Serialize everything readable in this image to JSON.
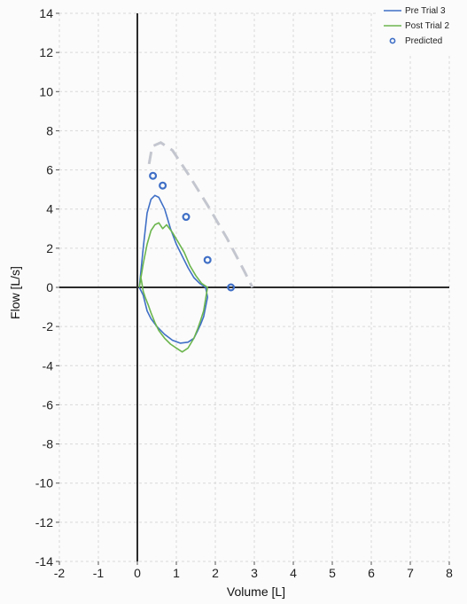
{
  "chart_data": {
    "type": "line",
    "title": "",
    "xlabel": "Volume [L]",
    "ylabel": "Flow [L/s]",
    "xlim": [
      -2,
      8
    ],
    "ylim": [
      -14,
      14
    ],
    "x_ticks": [
      -2,
      -1,
      0,
      1,
      2,
      3,
      4,
      5,
      6,
      7,
      8
    ],
    "y_ticks": [
      14,
      12,
      10,
      8,
      6,
      4,
      2,
      0,
      -2,
      -4,
      -6,
      -8,
      -10,
      -12,
      -14
    ],
    "grid": true,
    "legend": "top-right",
    "series": [
      {
        "name": "Pre Trial 3",
        "kind": "line",
        "color": "#3f6fc6",
        "x": [
          0.05,
          0.15,
          0.25,
          0.35,
          0.45,
          0.55,
          0.7,
          0.85,
          1.0,
          1.15,
          1.3,
          1.45,
          1.6,
          1.75,
          1.8,
          1.75,
          1.7,
          1.62,
          1.55,
          1.45,
          1.3,
          1.1,
          0.9,
          0.7,
          0.5,
          0.35,
          0.25,
          0.2,
          0.15,
          0.1,
          0.05
        ],
        "y": [
          0.0,
          2.0,
          3.8,
          4.5,
          4.7,
          4.6,
          4.0,
          3.0,
          2.2,
          1.6,
          1.0,
          0.5,
          0.2,
          0.0,
          -0.5,
          -1.0,
          -1.5,
          -1.9,
          -2.2,
          -2.6,
          -2.8,
          -2.85,
          -2.7,
          -2.4,
          -2.0,
          -1.6,
          -1.2,
          -0.8,
          -0.4,
          -0.2,
          0.0
        ]
      },
      {
        "name": "Post Trial 2",
        "kind": "line",
        "color": "#6cb64e",
        "x": [
          0.05,
          0.15,
          0.25,
          0.35,
          0.45,
          0.55,
          0.65,
          0.75,
          0.9,
          1.05,
          1.2,
          1.35,
          1.5,
          1.65,
          1.8,
          1.75,
          1.7,
          1.62,
          1.55,
          1.45,
          1.3,
          1.15,
          1.0,
          0.85,
          0.7,
          0.55,
          0.45,
          0.35,
          0.28,
          0.2,
          0.15,
          0.1,
          0.08
        ],
        "y": [
          0.0,
          1.2,
          2.2,
          2.9,
          3.2,
          3.3,
          3.0,
          3.2,
          2.8,
          2.3,
          1.8,
          1.1,
          0.6,
          0.2,
          0.0,
          -0.6,
          -1.2,
          -1.7,
          -2.1,
          -2.6,
          -3.1,
          -3.3,
          -3.1,
          -2.9,
          -2.6,
          -2.2,
          -1.8,
          -1.3,
          -0.9,
          -0.5,
          -0.2,
          0.4,
          0.6
        ]
      },
      {
        "name": "",
        "kind": "dashed",
        "color": "#c4c6cf",
        "x": [
          0.3,
          0.38,
          0.6,
          0.9,
          1.3,
          1.8,
          2.3,
          2.75,
          2.95
        ],
        "y": [
          6.3,
          7.2,
          7.4,
          7.0,
          5.8,
          4.2,
          2.5,
          0.8,
          0.0
        ]
      },
      {
        "name": "Predicted",
        "kind": "points",
        "color": "#3f6fc6",
        "x": [
          0.4,
          0.65,
          1.25,
          1.8,
          2.4
        ],
        "y": [
          5.7,
          5.2,
          3.6,
          1.4,
          0.0
        ]
      }
    ]
  }
}
